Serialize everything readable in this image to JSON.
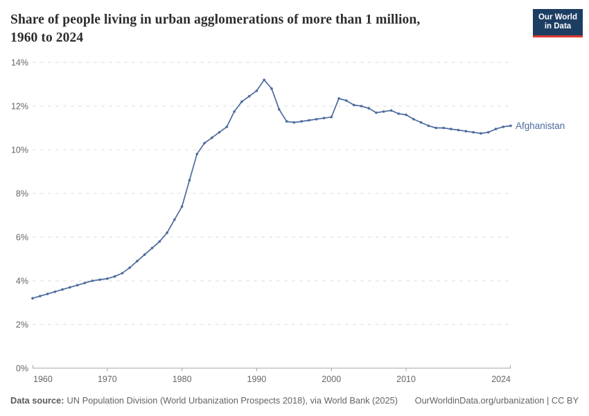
{
  "header": {
    "title_line1": "Share of people living in urban agglomerations of more than 1 million,",
    "title_line2": "1960 to 2024",
    "logo_line1": "Our World",
    "logo_line2": "in Data"
  },
  "footer": {
    "source_label": "Data source:",
    "source_text": "UN Population Division (World Urbanization Prospects 2018), via World Bank (2025)",
    "cc_text": "OurWorldinData.org/urbanization | CC BY"
  },
  "colors": {
    "series_line": "#4c6b9e",
    "grid": "#dddddd",
    "axis": "#a3a3a3",
    "tick_label": "#666666",
    "logo_bg": "#1d3d63",
    "logo_accent": "#dc3930"
  },
  "chart_data": {
    "type": "line",
    "title": "Share of people living in urban agglomerations of more than 1 million, 1960 to 2024",
    "xlabel": "",
    "ylabel": "",
    "xlim": [
      1960,
      2024
    ],
    "ylim": [
      0,
      14
    ],
    "x_ticks": [
      1960,
      1970,
      1980,
      1990,
      2000,
      2010,
      2024
    ],
    "y_ticks": [
      0,
      2,
      4,
      6,
      8,
      10,
      12,
      14
    ],
    "y_tick_suffix": "%",
    "grid": "horizontal dashed",
    "legend_position": "end-of-line",
    "x": [
      1960,
      1961,
      1962,
      1963,
      1964,
      1965,
      1966,
      1967,
      1968,
      1969,
      1970,
      1971,
      1972,
      1973,
      1974,
      1975,
      1976,
      1977,
      1978,
      1979,
      1980,
      1981,
      1982,
      1983,
      1984,
      1985,
      1986,
      1987,
      1988,
      1989,
      1990,
      1991,
      1992,
      1993,
      1994,
      1995,
      1996,
      1997,
      1998,
      1999,
      2000,
      2001,
      2002,
      2003,
      2004,
      2005,
      2006,
      2007,
      2008,
      2009,
      2010,
      2011,
      2012,
      2013,
      2014,
      2015,
      2016,
      2017,
      2018,
      2019,
      2020,
      2021,
      2022,
      2023,
      2024
    ],
    "series": [
      {
        "name": "Afghanistan",
        "color": "#4c6b9e",
        "values": [
          3.2,
          3.3,
          3.4,
          3.5,
          3.6,
          3.7,
          3.8,
          3.9,
          4.0,
          4.05,
          4.1,
          4.2,
          4.35,
          4.6,
          4.9,
          5.2,
          5.5,
          5.8,
          6.2,
          6.8,
          7.4,
          8.6,
          9.8,
          10.3,
          10.55,
          10.8,
          11.05,
          11.75,
          12.2,
          12.45,
          12.7,
          13.2,
          12.8,
          11.85,
          11.3,
          11.25,
          11.3,
          11.35,
          11.4,
          11.45,
          11.5,
          12.35,
          12.25,
          12.05,
          12.0,
          11.9,
          11.7,
          11.75,
          11.8,
          11.65,
          11.6,
          11.4,
          11.25,
          11.1,
          11.0,
          11.0,
          10.95,
          10.9,
          10.85,
          10.8,
          10.75,
          10.8,
          10.95,
          11.05,
          11.1
        ]
      }
    ]
  }
}
